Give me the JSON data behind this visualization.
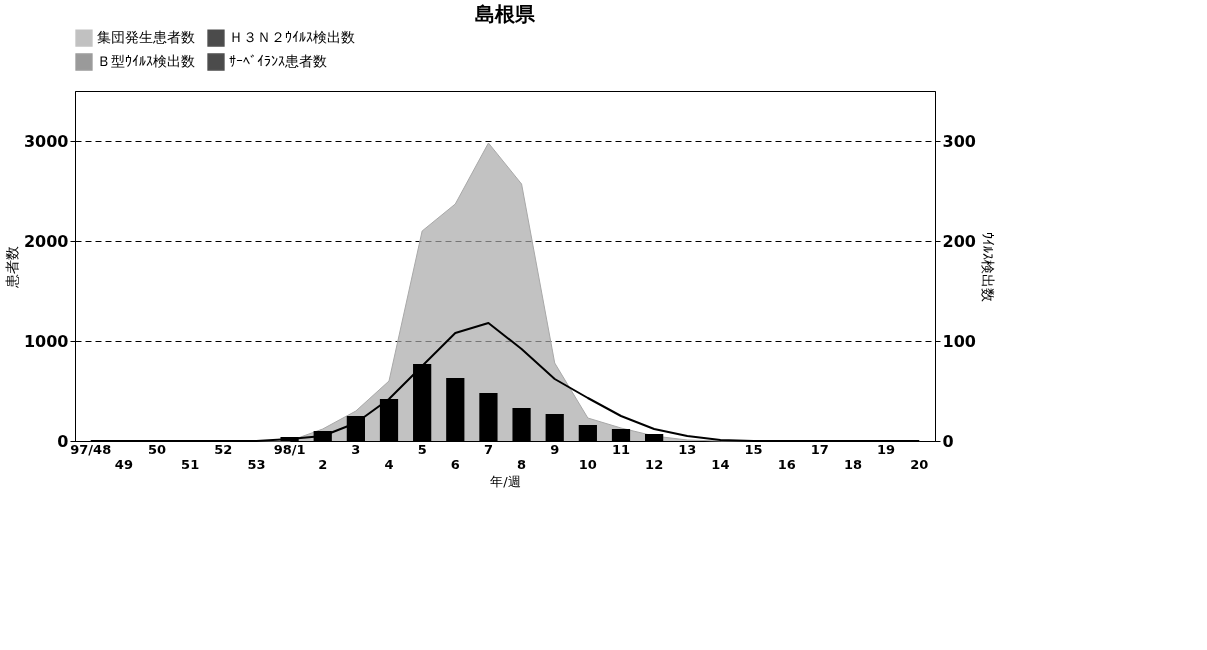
{
  "chart_data": {
    "type": "line",
    "title": "島根県",
    "xlabel": "年/週",
    "ylabel": "患者数",
    "y2label": "ｳｲﾙｽ検出数",
    "categories": [
      "97/48",
      "49",
      "50",
      "51",
      "52",
      "53",
      "98/1",
      "2",
      "3",
      "4",
      "5",
      "6",
      "7",
      "8",
      "9",
      "10",
      "11",
      "12",
      "13",
      "14",
      "15",
      "16",
      "17",
      "18",
      "19",
      "20"
    ],
    "series": [
      {
        "name": "集団発生患者数",
        "type": "area",
        "color": "#a8a8a8",
        "values": [
          0,
          0,
          0,
          0,
          0,
          0,
          0,
          120,
          300,
          600,
          2100,
          2370,
          2980,
          2570,
          780,
          230,
          130,
          50,
          10,
          0,
          0,
          0,
          0,
          0,
          0,
          0
        ]
      },
      {
        "name": "Ｈ３Ｎ２ｳｲﾙｽ検出数",
        "type": "bar",
        "axis": "y2",
        "color": "#000000",
        "values": [
          0,
          0,
          0,
          0,
          0,
          0,
          4,
          10,
          25,
          42,
          77,
          63,
          48,
          33,
          27,
          16,
          12,
          7,
          0,
          0,
          0,
          0,
          0,
          0,
          0,
          0
        ]
      },
      {
        "name": "Ｂ型ｳｲﾙｽ検出数",
        "type": "bar",
        "axis": "y2",
        "color": "#707070",
        "values": [
          null,
          null,
          null,
          null,
          null,
          null,
          null,
          null,
          null,
          null,
          null,
          null,
          null,
          null,
          null,
          null,
          null,
          null,
          null,
          null,
          null,
          null,
          null,
          null,
          null,
          null
        ]
      },
      {
        "name": "ｻｰﾍﾞｲﾗﾝｽ患者数",
        "color": "#000000",
        "values": [
          0,
          0,
          0,
          0,
          0,
          0,
          20,
          50,
          180,
          420,
          750,
          1080,
          1180,
          920,
          620,
          430,
          250,
          120,
          50,
          10,
          0,
          0,
          0,
          0,
          0,
          0
        ]
      }
    ],
    "ylim": [
      0,
      3500
    ],
    "yticks": [
      0,
      1000,
      2000,
      3000
    ],
    "y2lim": [
      0,
      350
    ],
    "y2ticks": [
      0,
      100,
      200,
      300
    ],
    "grid": "y",
    "legend": "top"
  }
}
